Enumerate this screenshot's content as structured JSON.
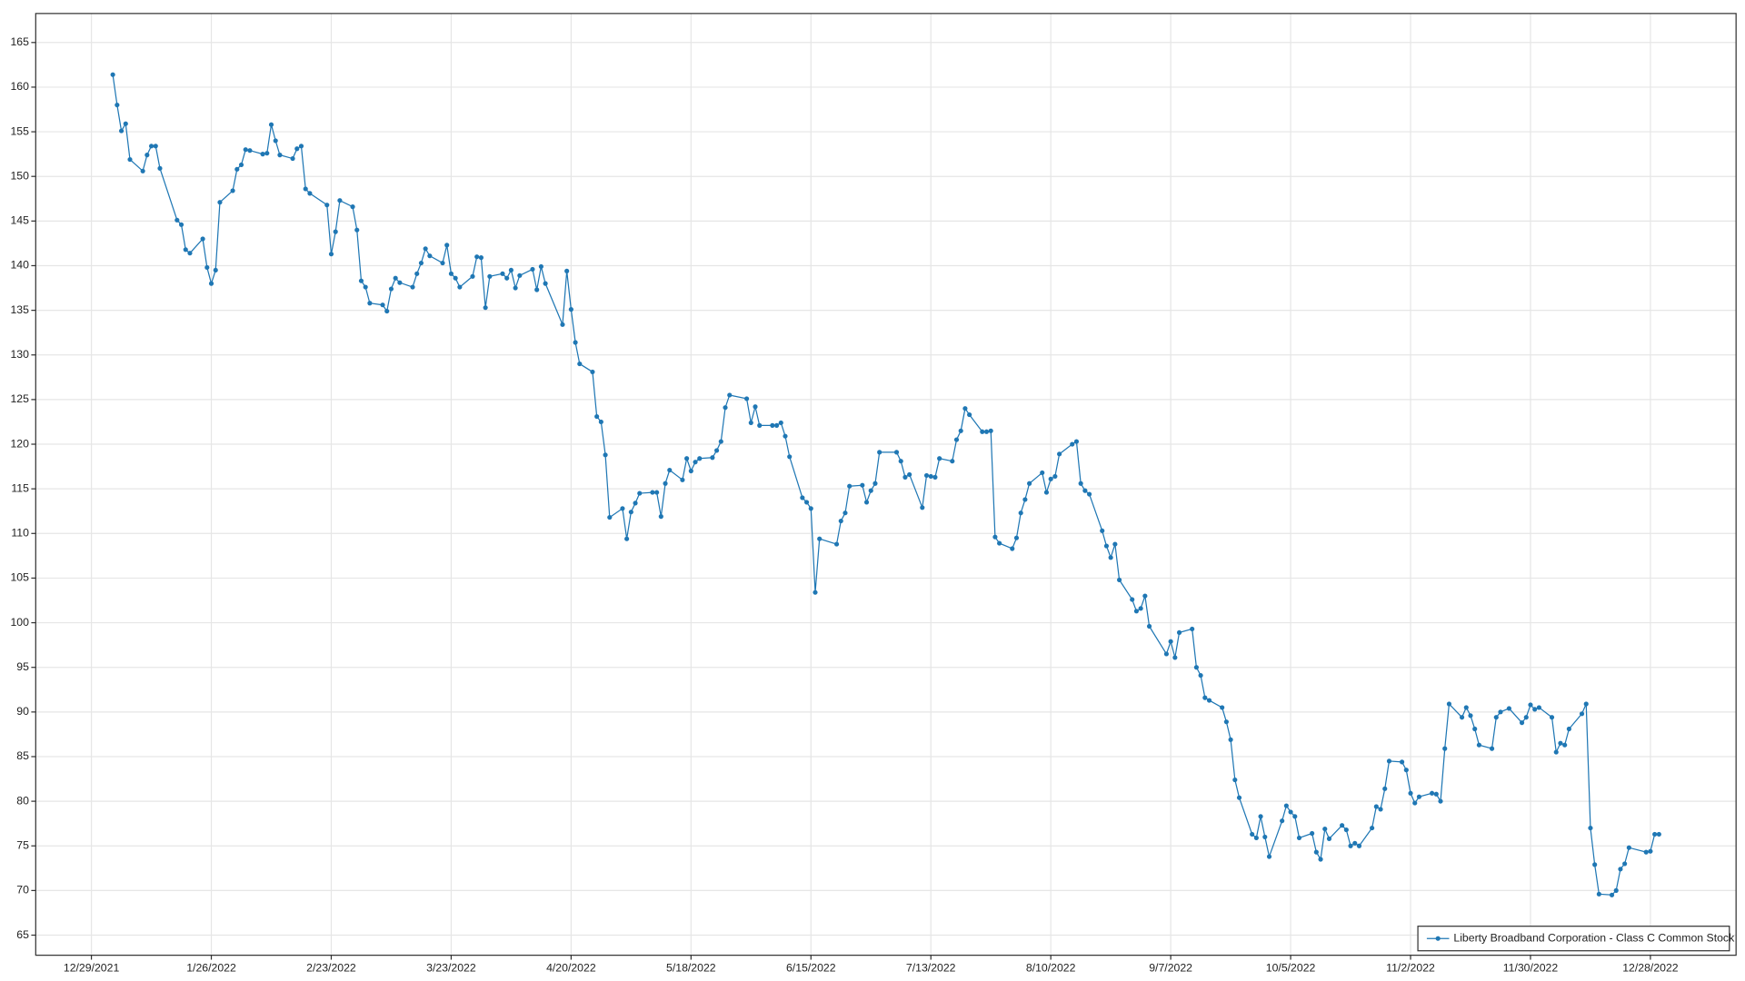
{
  "chart_data": {
    "type": "line",
    "x": [
      "2022-01-03",
      "2022-01-04",
      "2022-01-05",
      "2022-01-06",
      "2022-01-07",
      "2022-01-10",
      "2022-01-11",
      "2022-01-12",
      "2022-01-13",
      "2022-01-14",
      "2022-01-18",
      "2022-01-19",
      "2022-01-20",
      "2022-01-21",
      "2022-01-24",
      "2022-01-25",
      "2022-01-26",
      "2022-01-27",
      "2022-01-28",
      "2022-01-31",
      "2022-02-01",
      "2022-02-02",
      "2022-02-03",
      "2022-02-04",
      "2022-02-07",
      "2022-02-08",
      "2022-02-09",
      "2022-02-10",
      "2022-02-11",
      "2022-02-14",
      "2022-02-15",
      "2022-02-16",
      "2022-02-17",
      "2022-02-18",
      "2022-02-22",
      "2022-02-23",
      "2022-02-24",
      "2022-02-25",
      "2022-02-28",
      "2022-03-01",
      "2022-03-02",
      "2022-03-03",
      "2022-03-04",
      "2022-03-07",
      "2022-03-08",
      "2022-03-09",
      "2022-03-10",
      "2022-03-11",
      "2022-03-14",
      "2022-03-15",
      "2022-03-16",
      "2022-03-17",
      "2022-03-18",
      "2022-03-21",
      "2022-03-22",
      "2022-03-23",
      "2022-03-24",
      "2022-03-25",
      "2022-03-28",
      "2022-03-29",
      "2022-03-30",
      "2022-03-31",
      "2022-04-01",
      "2022-04-04",
      "2022-04-05",
      "2022-04-06",
      "2022-04-07",
      "2022-04-08",
      "2022-04-11",
      "2022-04-12",
      "2022-04-13",
      "2022-04-14",
      "2022-04-18",
      "2022-04-19",
      "2022-04-20",
      "2022-04-21",
      "2022-04-22",
      "2022-04-25",
      "2022-04-26",
      "2022-04-27",
      "2022-04-28",
      "2022-04-29",
      "2022-05-02",
      "2022-05-03",
      "2022-05-04",
      "2022-05-05",
      "2022-05-06",
      "2022-05-09",
      "2022-05-10",
      "2022-05-11",
      "2022-05-12",
      "2022-05-13",
      "2022-05-16",
      "2022-05-17",
      "2022-05-18",
      "2022-05-19",
      "2022-05-20",
      "2022-05-23",
      "2022-05-24",
      "2022-05-25",
      "2022-05-26",
      "2022-05-27",
      "2022-05-31",
      "2022-06-01",
      "2022-06-02",
      "2022-06-03",
      "2022-06-06",
      "2022-06-07",
      "2022-06-08",
      "2022-06-09",
      "2022-06-10",
      "2022-06-13",
      "2022-06-14",
      "2022-06-15",
      "2022-06-16",
      "2022-06-17",
      "2022-06-21",
      "2022-06-22",
      "2022-06-23",
      "2022-06-24",
      "2022-06-27",
      "2022-06-28",
      "2022-06-29",
      "2022-06-30",
      "2022-07-01",
      "2022-07-05",
      "2022-07-06",
      "2022-07-07",
      "2022-07-08",
      "2022-07-11",
      "2022-07-12",
      "2022-07-13",
      "2022-07-14",
      "2022-07-15",
      "2022-07-18",
      "2022-07-19",
      "2022-07-20",
      "2022-07-21",
      "2022-07-22",
      "2022-07-25",
      "2022-07-26",
      "2022-07-27",
      "2022-07-28",
      "2022-07-29",
      "2022-08-01",
      "2022-08-02",
      "2022-08-03",
      "2022-08-04",
      "2022-08-05",
      "2022-08-08",
      "2022-08-09",
      "2022-08-10",
      "2022-08-11",
      "2022-08-12",
      "2022-08-15",
      "2022-08-16",
      "2022-08-17",
      "2022-08-18",
      "2022-08-19",
      "2022-08-22",
      "2022-08-23",
      "2022-08-24",
      "2022-08-25",
      "2022-08-26",
      "2022-08-29",
      "2022-08-30",
      "2022-08-31",
      "2022-09-01",
      "2022-09-02",
      "2022-09-06",
      "2022-09-07",
      "2022-09-08",
      "2022-09-09",
      "2022-09-12",
      "2022-09-13",
      "2022-09-14",
      "2022-09-15",
      "2022-09-16",
      "2022-09-19",
      "2022-09-20",
      "2022-09-21",
      "2022-09-22",
      "2022-09-23",
      "2022-09-26",
      "2022-09-27",
      "2022-09-28",
      "2022-09-29",
      "2022-09-30",
      "2022-10-03",
      "2022-10-04",
      "2022-10-05",
      "2022-10-06",
      "2022-10-07",
      "2022-10-10",
      "2022-10-11",
      "2022-10-12",
      "2022-10-13",
      "2022-10-14",
      "2022-10-17",
      "2022-10-18",
      "2022-10-19",
      "2022-10-20",
      "2022-10-21",
      "2022-10-24",
      "2022-10-25",
      "2022-10-26",
      "2022-10-27",
      "2022-10-28",
      "2022-10-31",
      "2022-11-01",
      "2022-11-02",
      "2022-11-03",
      "2022-11-04",
      "2022-11-07",
      "2022-11-08",
      "2022-11-09",
      "2022-11-10",
      "2022-11-11",
      "2022-11-14",
      "2022-11-15",
      "2022-11-16",
      "2022-11-17",
      "2022-11-18",
      "2022-11-21",
      "2022-11-22",
      "2022-11-23",
      "2022-11-25",
      "2022-11-28",
      "2022-11-29",
      "2022-11-30",
      "2022-12-01",
      "2022-12-02",
      "2022-12-05",
      "2022-12-06",
      "2022-12-07",
      "2022-12-08",
      "2022-12-09",
      "2022-12-12",
      "2022-12-13",
      "2022-12-14",
      "2022-12-15",
      "2022-12-16",
      "2022-12-19",
      "2022-12-20",
      "2022-12-21",
      "2022-12-22",
      "2022-12-23",
      "2022-12-27",
      "2022-12-28",
      "2022-12-29",
      "2022-12-30"
    ],
    "series": [
      {
        "name": "Liberty Broadband Corporation - Class C Common Stock",
        "color": "#1f77b4",
        "values": [
          161.4,
          158.0,
          155.1,
          155.9,
          151.9,
          150.6,
          152.4,
          153.4,
          153.4,
          150.9,
          145.1,
          144.6,
          141.8,
          141.4,
          143.0,
          139.8,
          138.0,
          139.5,
          147.1,
          148.4,
          150.8,
          151.3,
          153.0,
          152.9,
          152.5,
          152.6,
          155.8,
          154.0,
          152.4,
          152.0,
          153.1,
          153.4,
          148.6,
          148.1,
          146.8,
          141.3,
          143.8,
          147.3,
          146.6,
          144.0,
          138.3,
          137.6,
          135.8,
          135.6,
          134.9,
          137.4,
          138.6,
          138.1,
          137.6,
          139.1,
          140.3,
          141.9,
          141.1,
          140.3,
          142.3,
          139.1,
          138.6,
          137.6,
          138.8,
          141.0,
          140.9,
          135.3,
          138.8,
          139.1,
          138.6,
          139.5,
          137.5,
          138.9,
          139.6,
          137.3,
          139.9,
          138.0,
          133.4,
          139.4,
          135.1,
          131.4,
          129.0,
          128.1,
          123.1,
          122.5,
          118.8,
          111.8,
          112.8,
          109.4,
          112.4,
          113.4,
          114.5,
          114.6,
          114.6,
          111.9,
          115.6,
          117.1,
          116.0,
          118.4,
          117.0,
          118.0,
          118.4,
          118.5,
          119.3,
          120.3,
          124.1,
          125.5,
          125.1,
          122.4,
          124.2,
          122.1,
          122.1,
          122.1,
          122.4,
          120.9,
          118.6,
          114.0,
          113.5,
          112.8,
          103.4,
          109.4,
          108.8,
          111.4,
          112.3,
          115.3,
          115.4,
          113.5,
          114.8,
          115.6,
          119.1,
          119.1,
          118.1,
          116.3,
          116.6,
          112.9,
          116.5,
          116.4,
          116.3,
          118.4,
          118.1,
          120.5,
          121.5,
          124.0,
          123.3,
          121.4,
          121.4,
          121.5,
          109.6,
          108.9,
          108.3,
          109.5,
          112.3,
          113.8,
          115.6,
          116.8,
          114.6,
          116.1,
          116.4,
          118.9,
          120.0,
          120.3,
          115.6,
          114.8,
          114.4,
          110.3,
          108.6,
          107.3,
          108.8,
          104.8,
          102.6,
          101.3,
          101.6,
          103.0,
          99.6,
          96.5,
          97.9,
          96.1,
          98.9,
          99.3,
          95.0,
          94.1,
          91.6,
          91.3,
          90.5,
          88.9,
          86.9,
          82.4,
          80.4,
          76.3,
          75.9,
          78.3,
          76.0,
          73.8,
          77.8,
          79.5,
          78.8,
          78.3,
          75.9,
          76.4,
          74.3,
          73.5,
          76.9,
          75.8,
          77.3,
          76.8,
          75.0,
          75.3,
          75.0,
          77.0,
          79.4,
          79.1,
          81.4,
          84.5,
          84.4,
          83.5,
          80.9,
          79.8,
          80.5,
          80.9,
          80.8,
          80.0,
          85.9,
          90.9,
          89.4,
          90.5,
          89.6,
          88.1,
          86.3,
          85.9,
          89.4,
          90.0,
          90.4,
          88.8,
          89.4,
          90.8,
          90.3,
          90.5,
          89.4,
          85.5,
          86.5,
          86.3,
          88.1,
          89.8,
          90.9,
          77.0,
          72.9,
          69.6,
          69.5,
          70.0,
          72.4,
          73.0,
          74.8,
          74.3,
          74.4,
          76.3,
          76.3
        ]
      }
    ],
    "xlim": [
      "2021-12-16",
      "2023-01-17"
    ],
    "xticks": [
      {
        "value": "2021-12-29",
        "label": "12/29/2021"
      },
      {
        "value": "2022-01-26",
        "label": "1/26/2022"
      },
      {
        "value": "2022-02-23",
        "label": "2/23/2022"
      },
      {
        "value": "2022-03-23",
        "label": "3/23/2022"
      },
      {
        "value": "2022-04-20",
        "label": "4/20/2022"
      },
      {
        "value": "2022-05-18",
        "label": "5/18/2022"
      },
      {
        "value": "2022-06-15",
        "label": "6/15/2022"
      },
      {
        "value": "2022-07-13",
        "label": "7/13/2022"
      },
      {
        "value": "2022-08-10",
        "label": "8/10/2022"
      },
      {
        "value": "2022-09-07",
        "label": "9/7/2022"
      },
      {
        "value": "2022-10-05",
        "label": "10/5/2022"
      },
      {
        "value": "2022-11-02",
        "label": "11/2/2022"
      },
      {
        "value": "2022-11-30",
        "label": "11/30/2022"
      },
      {
        "value": "2022-12-28",
        "label": "12/28/2022"
      }
    ],
    "ylim": [
      62.75,
      168.25
    ],
    "yticks": [
      65,
      70,
      75,
      80,
      85,
      90,
      95,
      100,
      105,
      110,
      115,
      120,
      125,
      130,
      135,
      140,
      145,
      150,
      155,
      160,
      165
    ],
    "grid": true,
    "markers": true,
    "legend": "lower right"
  }
}
